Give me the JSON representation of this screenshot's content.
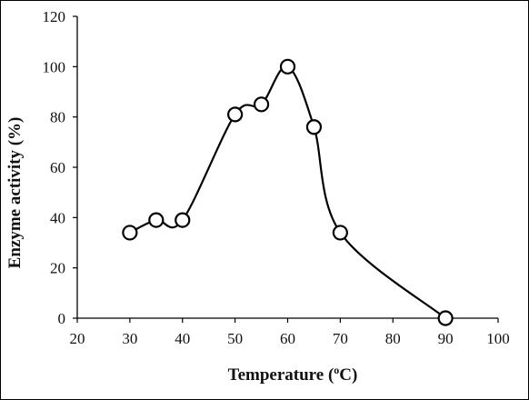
{
  "chart_data": {
    "type": "line",
    "xlabel": "Temperature (°C)",
    "xlabel_parts": [
      "Temperature (",
      "o",
      "C)"
    ],
    "ylabel": "Enzyme activity (%)",
    "xlim": [
      20,
      100
    ],
    "ylim": [
      0,
      120
    ],
    "xticks": [
      20,
      30,
      40,
      50,
      60,
      70,
      80,
      90,
      100
    ],
    "yticks": [
      0,
      20,
      40,
      60,
      80,
      100,
      120
    ],
    "grid": false,
    "legend": "none",
    "line_color": "#000000",
    "marker": "open-circle",
    "series": [
      {
        "x": [
          30,
          35,
          40,
          50,
          55,
          60,
          65,
          70,
          90
        ],
        "y": [
          34,
          39,
          39,
          81,
          85,
          100,
          76,
          34,
          0
        ]
      }
    ]
  }
}
